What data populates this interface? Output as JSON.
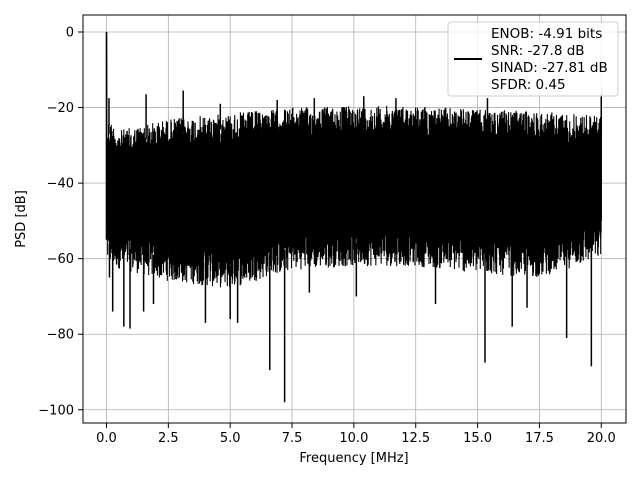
{
  "chart_data": {
    "type": "line",
    "title": "",
    "xlabel": "Frequency [MHz]",
    "ylabel": "PSD [dB]",
    "xlim": [
      -0.95,
      21.0
    ],
    "ylim": [
      -103.5,
      4.5
    ],
    "xticks": [
      0.0,
      2.5,
      5.0,
      7.5,
      10.0,
      12.5,
      15.0,
      17.5,
      20.0
    ],
    "xtick_labels": [
      "0.0",
      "2.5",
      "5.0",
      "7.5",
      "10.0",
      "12.5",
      "15.0",
      "17.5",
      "20.0"
    ],
    "yticks": [
      0,
      -20,
      -40,
      -60,
      -80,
      -100
    ],
    "ytick_labels": [
      "0",
      "−20",
      "−40",
      "−60",
      "−80",
      "−100"
    ],
    "grid": true,
    "line_color": "#000000",
    "legend": {
      "placement": "top-right",
      "entries": [
        "ENOB: -4.91 bits",
        "SNR: -27.8 dB",
        "SINAD: -27.81 dB",
        "SFDR: 0.45"
      ]
    },
    "series": [
      {
        "x_range": [
          0.0,
          20.0
        ],
        "peak": {
          "x": 0.0,
          "y": 0.0
        },
        "upper_envelope": [
          [
            0.1,
            -23
          ],
          [
            0.5,
            -26
          ],
          [
            2.5,
            -23
          ],
          [
            5.0,
            -21.5
          ],
          [
            7.5,
            -20
          ],
          [
            10.0,
            -19.5
          ],
          [
            12.5,
            -19.5
          ],
          [
            15.0,
            -20.5
          ],
          [
            17.5,
            -21
          ],
          [
            20.0,
            -22
          ]
        ],
        "lower_envelope": [
          [
            0.1,
            -62
          ],
          [
            2.5,
            -66
          ],
          [
            5.0,
            -68
          ],
          [
            7.5,
            -63
          ],
          [
            10.0,
            -62
          ],
          [
            12.5,
            -62
          ],
          [
            15.0,
            -64
          ],
          [
            17.5,
            -65
          ],
          [
            20.0,
            -60
          ]
        ],
        "spurs": [
          {
            "x": 0.1,
            "y": -17.5
          },
          {
            "x": 1.6,
            "y": -16.5
          },
          {
            "x": 3.1,
            "y": -15.5
          },
          {
            "x": 4.6,
            "y": -19
          },
          {
            "x": 6.9,
            "y": -18
          },
          {
            "x": 8.4,
            "y": -17.5
          },
          {
            "x": 10.4,
            "y": -17
          },
          {
            "x": 11.7,
            "y": -17.5
          },
          {
            "x": 15.4,
            "y": -17.5
          },
          {
            "x": 20.0,
            "y": -16.5
          }
        ],
        "dips": [
          {
            "x": 0.12,
            "y": -65
          },
          {
            "x": 0.25,
            "y": -74
          },
          {
            "x": 0.7,
            "y": -78
          },
          {
            "x": 0.95,
            "y": -78.5
          },
          {
            "x": 1.5,
            "y": -74
          },
          {
            "x": 1.9,
            "y": -72
          },
          {
            "x": 4.0,
            "y": -77
          },
          {
            "x": 5.0,
            "y": -76
          },
          {
            "x": 5.3,
            "y": -77
          },
          {
            "x": 6.6,
            "y": -89.5
          },
          {
            "x": 7.2,
            "y": -98
          },
          {
            "x": 8.2,
            "y": -69
          },
          {
            "x": 10.1,
            "y": -70
          },
          {
            "x": 13.3,
            "y": -72
          },
          {
            "x": 15.3,
            "y": -87.5
          },
          {
            "x": 16.4,
            "y": -78
          },
          {
            "x": 17.0,
            "y": -73
          },
          {
            "x": 18.6,
            "y": -81
          },
          {
            "x": 19.6,
            "y": -88.5
          }
        ]
      }
    ]
  }
}
